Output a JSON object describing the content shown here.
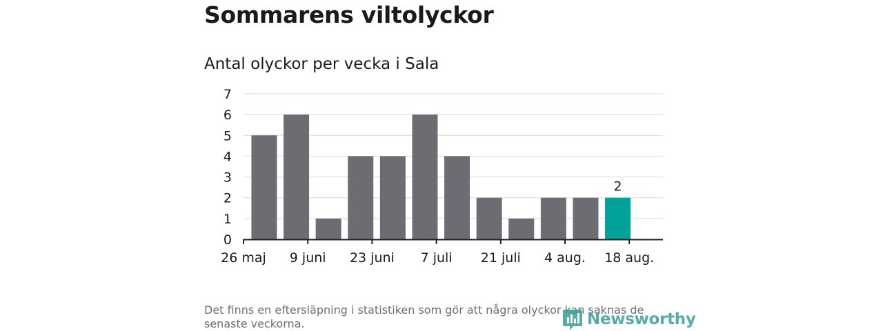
{
  "header": {
    "title": "Sommarens viltolyckor",
    "subtitle": "Antal olyckor per vecka i Sala"
  },
  "chart_data": {
    "type": "bar",
    "x": [
      "2024-05-27",
      "2024-06-03",
      "2024-06-10",
      "2024-06-17",
      "2024-06-24",
      "2024-07-01",
      "2024-07-08",
      "2024-07-15",
      "2024-07-22",
      "2024-07-29",
      "2024-08-05",
      "2024-08-12"
    ],
    "values": [
      5,
      6,
      1,
      4,
      4,
      6,
      4,
      2,
      1,
      2,
      2,
      2
    ],
    "x_ticks": [
      "26 maj",
      "9 juni",
      "23 juni",
      "7 juli",
      "21 juli",
      "4 aug.",
      "18 aug."
    ],
    "y_ticks": [
      0,
      1,
      2,
      3,
      4,
      5,
      6,
      7
    ],
    "ylim": [
      0,
      7
    ],
    "data_labels": [
      {
        "index": 11,
        "text": "2"
      }
    ],
    "grid": "horizontal",
    "colors": {
      "bar": "#6d6c72",
      "highlight": "#00a39a",
      "grid": "#d9d9d9",
      "axis": "#222222"
    }
  },
  "footer": {
    "note": "Det finns en eftersläpning i statistiken som gör att några olyckor kan saknas de senaste veckorna.",
    "logo_text": "Newsworthy",
    "logo_icon": "bar-chart-bubble-icon",
    "logo_color": "#3a9e96"
  }
}
